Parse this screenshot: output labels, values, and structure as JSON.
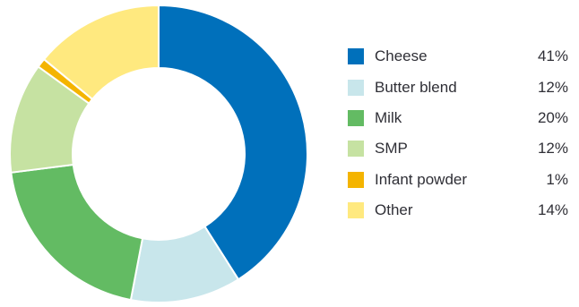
{
  "chart_data": {
    "type": "pie",
    "categories": [
      "Cheese",
      "Butter blend",
      "Milk",
      "SMP",
      "Infant powder",
      "Other"
    ],
    "values": [
      41,
      12,
      20,
      12,
      1,
      14
    ],
    "value_labels": [
      "41%",
      "12%",
      "20%",
      "12%",
      "1%",
      "14%"
    ],
    "colors": [
      "#0070bb",
      "#c8e6eb",
      "#63bb63",
      "#c6e2a2",
      "#f4b400",
      "#ffe97f"
    ],
    "title": "",
    "legend_position": "right"
  }
}
